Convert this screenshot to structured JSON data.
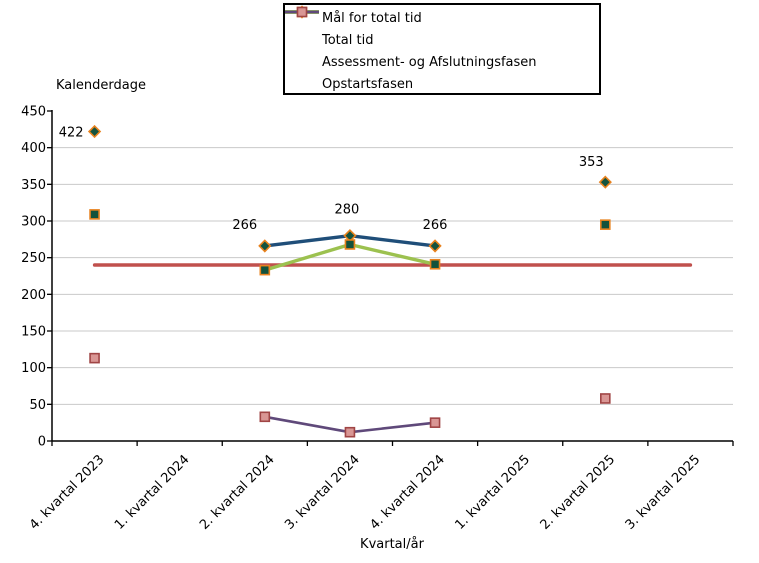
{
  "chart_data": {
    "type": "line",
    "title": "",
    "ylabel": "Kalenderdage",
    "xlabel": "Kvartal/år",
    "ylim": [
      0,
      450
    ],
    "ytick_step": 50,
    "grid": "horizontal",
    "legend_position": "top-center",
    "categories": [
      "4. kvartal 2023",
      "1. kvartal 2024",
      "2. kvartal 2024",
      "3. kvartal 2024",
      "4. kvartal 2024",
      "1. kvartal 2025",
      "2. kvartal 2025",
      "3. kvartal 2025"
    ],
    "series": [
      {
        "name": "Mål for total tid",
        "color": "#C0504D",
        "marker": "none",
        "values": [
          240,
          240,
          240,
          240,
          240,
          240,
          240,
          240
        ]
      },
      {
        "name": "Total tid",
        "color": "#1F4E79",
        "marker": "diamond",
        "marker_fill": "#14543F",
        "marker_border": "#E8821E",
        "values": [
          422,
          null,
          266,
          280,
          266,
          null,
          353,
          null
        ],
        "labels": [
          "422",
          null,
          "266",
          "280",
          "266",
          null,
          "353",
          null
        ]
      },
      {
        "name": "Assessment- og Afslutningsfasen",
        "color": "#9CC14F",
        "marker": "square",
        "marker_fill": "#12523C",
        "marker_border": "#E8821E",
        "values": [
          309,
          null,
          233,
          268,
          241,
          null,
          295,
          null
        ]
      },
      {
        "name": "Opstartsfasen",
        "color": "#5F497A",
        "marker": "square",
        "marker_fill": "#D99694",
        "marker_border": "#A04545",
        "values": [
          113,
          null,
          33,
          12,
          25,
          null,
          58,
          null
        ]
      }
    ]
  }
}
